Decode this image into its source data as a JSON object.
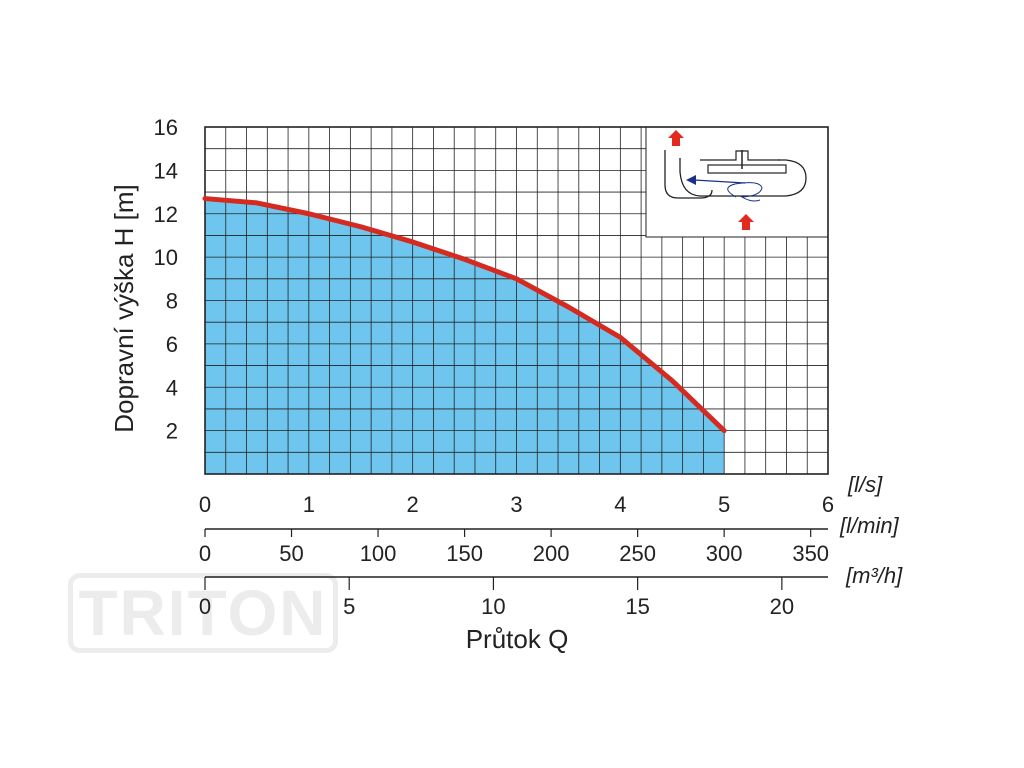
{
  "watermark": "TRITON",
  "colors": {
    "fill": "#6ec6ef",
    "curve": "#d42a20",
    "grid": "#222222",
    "arrow": "#e02b1e",
    "flow": "#1a2f8c"
  },
  "chart_data": {
    "type": "area",
    "ylabel": "Dopravní výška H [m]",
    "xlabel": "Průtok Q",
    "ylim": [
      0,
      16
    ],
    "y_ticks": [
      2,
      4,
      6,
      8,
      10,
      12,
      14,
      16
    ],
    "grid": true,
    "inset_icon": "pump-flow-diagram-icon",
    "axes": [
      {
        "unit": "[l/s]",
        "range": [
          0,
          6
        ],
        "ticks": [
          "0",
          "1",
          "2",
          "3",
          "4",
          "5",
          "6"
        ],
        "tick_values": [
          0,
          1,
          2,
          3,
          4,
          5,
          6
        ]
      },
      {
        "unit": "[l/min]",
        "range": [
          0,
          360
        ],
        "ticks": [
          "0",
          "50",
          "100",
          "150",
          "200",
          "250",
          "300",
          "350"
        ],
        "tick_values": [
          0,
          50,
          100,
          150,
          200,
          250,
          300,
          350
        ]
      },
      {
        "unit": "[m³/h]",
        "range": [
          0,
          21.6
        ],
        "ticks": [
          "0",
          "5",
          "10",
          "15",
          "20"
        ],
        "tick_values": [
          0,
          5,
          10,
          15,
          20
        ]
      }
    ],
    "series": [
      {
        "x": [
          0,
          0.5,
          1,
          1.5,
          2,
          2.5,
          3,
          3.5,
          4,
          4.5,
          5
        ],
        "y": [
          12.7,
          12.5,
          12.0,
          11.4,
          10.7,
          9.9,
          9.0,
          7.7,
          6.3,
          4.3,
          2.0
        ]
      }
    ]
  }
}
